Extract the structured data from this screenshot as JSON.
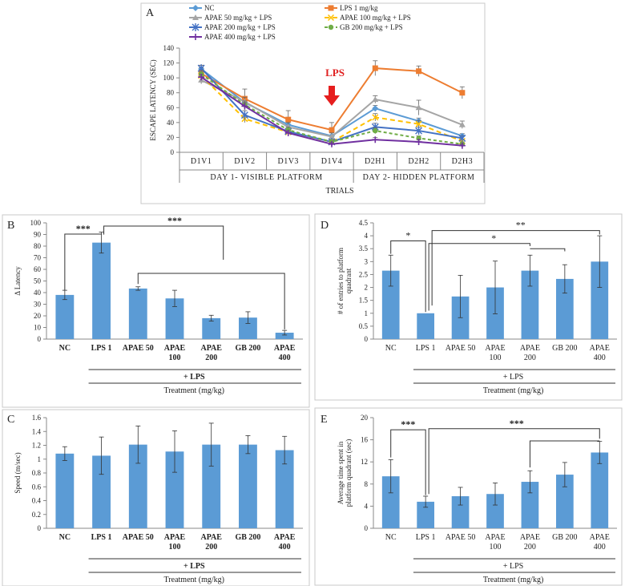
{
  "chart_data": [
    {
      "panel": "A",
      "type": "line",
      "ylabel": "ESCAPE LATENCY (SEC)",
      "xlabel": "TRIALS",
      "ylim": [
        0,
        140
      ],
      "yticks": [
        "0",
        "20",
        "40",
        "60",
        "80",
        "100",
        "120",
        "140"
      ],
      "categories": [
        "D1V1",
        "D1V2",
        "D1V3",
        "D1V4",
        "D2H1",
        "D2H2",
        "D2H3"
      ],
      "groups": [
        "DAY 1- VISIBLE PLATFORM",
        "DAY 2- HIDDEN PLATFORM"
      ],
      "annotation": "LPS",
      "series": [
        {
          "name": "NC",
          "color": "#5b9bd5",
          "marker": "diamond",
          "dash": "",
          "values": [
            112,
            67,
            37,
            22,
            59,
            42,
            22
          ],
          "err": [
            5,
            6,
            6,
            5,
            4,
            4,
            3
          ]
        },
        {
          "name": "LPS 1 mg/kg",
          "color": "#ed7d31",
          "marker": "square",
          "dash": "",
          "values": [
            106,
            72,
            44,
            30,
            113,
            109,
            80
          ],
          "err": [
            8,
            13,
            12,
            10,
            10,
            7,
            8
          ]
        },
        {
          "name": "APAE 50 mg/kg + LPS",
          "color": "#a5a5a5",
          "marker": "triangle",
          "dash": "",
          "values": [
            97,
            68,
            34,
            21,
            71,
            60,
            37
          ],
          "err": [
            5,
            6,
            6,
            5,
            5,
            10,
            5
          ]
        },
        {
          "name": "APAE 100 mg/kg + LPS",
          "color": "#ffc000",
          "marker": "x",
          "dash": "6,4",
          "values": [
            103,
            45,
            27,
            14,
            47,
            38,
            15
          ],
          "err": [
            5,
            5,
            4,
            3,
            5,
            5,
            3
          ]
        },
        {
          "name": "APAE 200 mg/kg + LPS",
          "color": "#4472c4",
          "marker": "star",
          "dash": "",
          "values": [
            113,
            50,
            28,
            14,
            34,
            29,
            19
          ],
          "err": [
            4,
            6,
            4,
            3,
            5,
            5,
            3
          ]
        },
        {
          "name": "GB 200 mg/kg + LPS",
          "color": "#70ad47",
          "marker": "circle",
          "dash": "4,3",
          "values": [
            105,
            64,
            30,
            14,
            29,
            19,
            11
          ],
          "err": [
            5,
            5,
            4,
            3,
            4,
            3,
            3
          ]
        },
        {
          "name": "APAE 400 mg/kg + LPS",
          "color": "#7030a0",
          "marker": "plus",
          "dash": "",
          "values": [
            101,
            62,
            26,
            11,
            17,
            14,
            9
          ],
          "err": [
            4,
            5,
            3,
            2,
            3,
            3,
            2
          ]
        }
      ]
    },
    {
      "panel": "B",
      "type": "bar",
      "ylabel": "Δ Latency",
      "xlabel": "Treatment (mg/kg)",
      "ylim": [
        0,
        100
      ],
      "yticks": [
        "0",
        "10",
        "20",
        "30",
        "40",
        "50",
        "60",
        "70",
        "80",
        "90",
        "100"
      ],
      "categories": [
        [
          "NC"
        ],
        [
          "LPS 1"
        ],
        [
          "APAE 50"
        ],
        [
          "APAE",
          "100"
        ],
        [
          "APAE",
          "200"
        ],
        [
          "GB 200"
        ],
        [
          "APAE",
          "400"
        ]
      ],
      "values": [
        38,
        83,
        43.5,
        35,
        18,
        18.5,
        5.5
      ],
      "errors": [
        4,
        9,
        1.5,
        7,
        2.5,
        5,
        2
      ],
      "group_label": "+ LPS",
      "sig": [
        "***",
        "***"
      ]
    },
    {
      "panel": "C",
      "type": "bar",
      "ylabel": "Speed (m/sec)",
      "xlabel": "Treatment (mg/kg)",
      "ylim": [
        0,
        1.6
      ],
      "yticks": [
        "0",
        "0.2",
        "0.4",
        "0.6",
        "0.8",
        "1",
        "1.2",
        "1.4",
        "1.6"
      ],
      "categories": [
        [
          "NC"
        ],
        [
          "LPS 1"
        ],
        [
          "APAE 50"
        ],
        [
          "APAE",
          "100"
        ],
        [
          "APAE",
          "200"
        ],
        [
          "GB 200"
        ],
        [
          "APAE",
          "400"
        ]
      ],
      "values": [
        1.08,
        1.05,
        1.21,
        1.11,
        1.21,
        1.21,
        1.13
      ],
      "errors": [
        0.1,
        0.27,
        0.27,
        0.3,
        0.31,
        0.13,
        0.2
      ],
      "group_label": "+ LPS"
    },
    {
      "panel": "D",
      "type": "bar",
      "ylabel": "# of entries to platform quadrant",
      "xlabel": "Treatment (mg/kg)",
      "ylim": [
        0,
        4.5
      ],
      "yticks": [
        "0",
        "0.5",
        "1",
        "1.5",
        "2",
        "2.5",
        "3",
        "3.5",
        "4",
        "4.5"
      ],
      "categories": [
        [
          "NC"
        ],
        [
          "LPS 1"
        ],
        [
          "APAE 50"
        ],
        [
          "APAE",
          "100"
        ],
        [
          "APAE",
          "200"
        ],
        [
          "GB 200"
        ],
        [
          "APAE",
          "400"
        ]
      ],
      "values": [
        2.65,
        1.0,
        1.65,
        2.0,
        2.65,
        2.33,
        3.0
      ],
      "errors": [
        0.6,
        0,
        0.82,
        1.02,
        0.6,
        0.55,
        1.0
      ],
      "group_label": "+ LPS",
      "sig": [
        "*",
        "*",
        "**"
      ]
    },
    {
      "panel": "E",
      "type": "bar",
      "ylabel": "Average time spent in platform quadrant (sec)",
      "xlabel": "Treatment (mg/kg)",
      "ylim": [
        0,
        20
      ],
      "yticks": [
        "0",
        "4",
        "8",
        "12",
        "16",
        "20"
      ],
      "categories": [
        [
          "NC"
        ],
        [
          "LPS 1"
        ],
        [
          "APAE 50"
        ],
        [
          "APAE",
          "100"
        ],
        [
          "APAE",
          "200"
        ],
        [
          "GB 200"
        ],
        [
          "APAE",
          "400"
        ]
      ],
      "values": [
        9.4,
        4.8,
        5.8,
        6.2,
        8.4,
        9.7,
        13.7
      ],
      "errors": [
        3.0,
        1.0,
        1.6,
        2.0,
        2.0,
        2.2,
        2.0
      ],
      "group_label": "+ LPS",
      "sig": [
        "***",
        "***"
      ]
    }
  ]
}
